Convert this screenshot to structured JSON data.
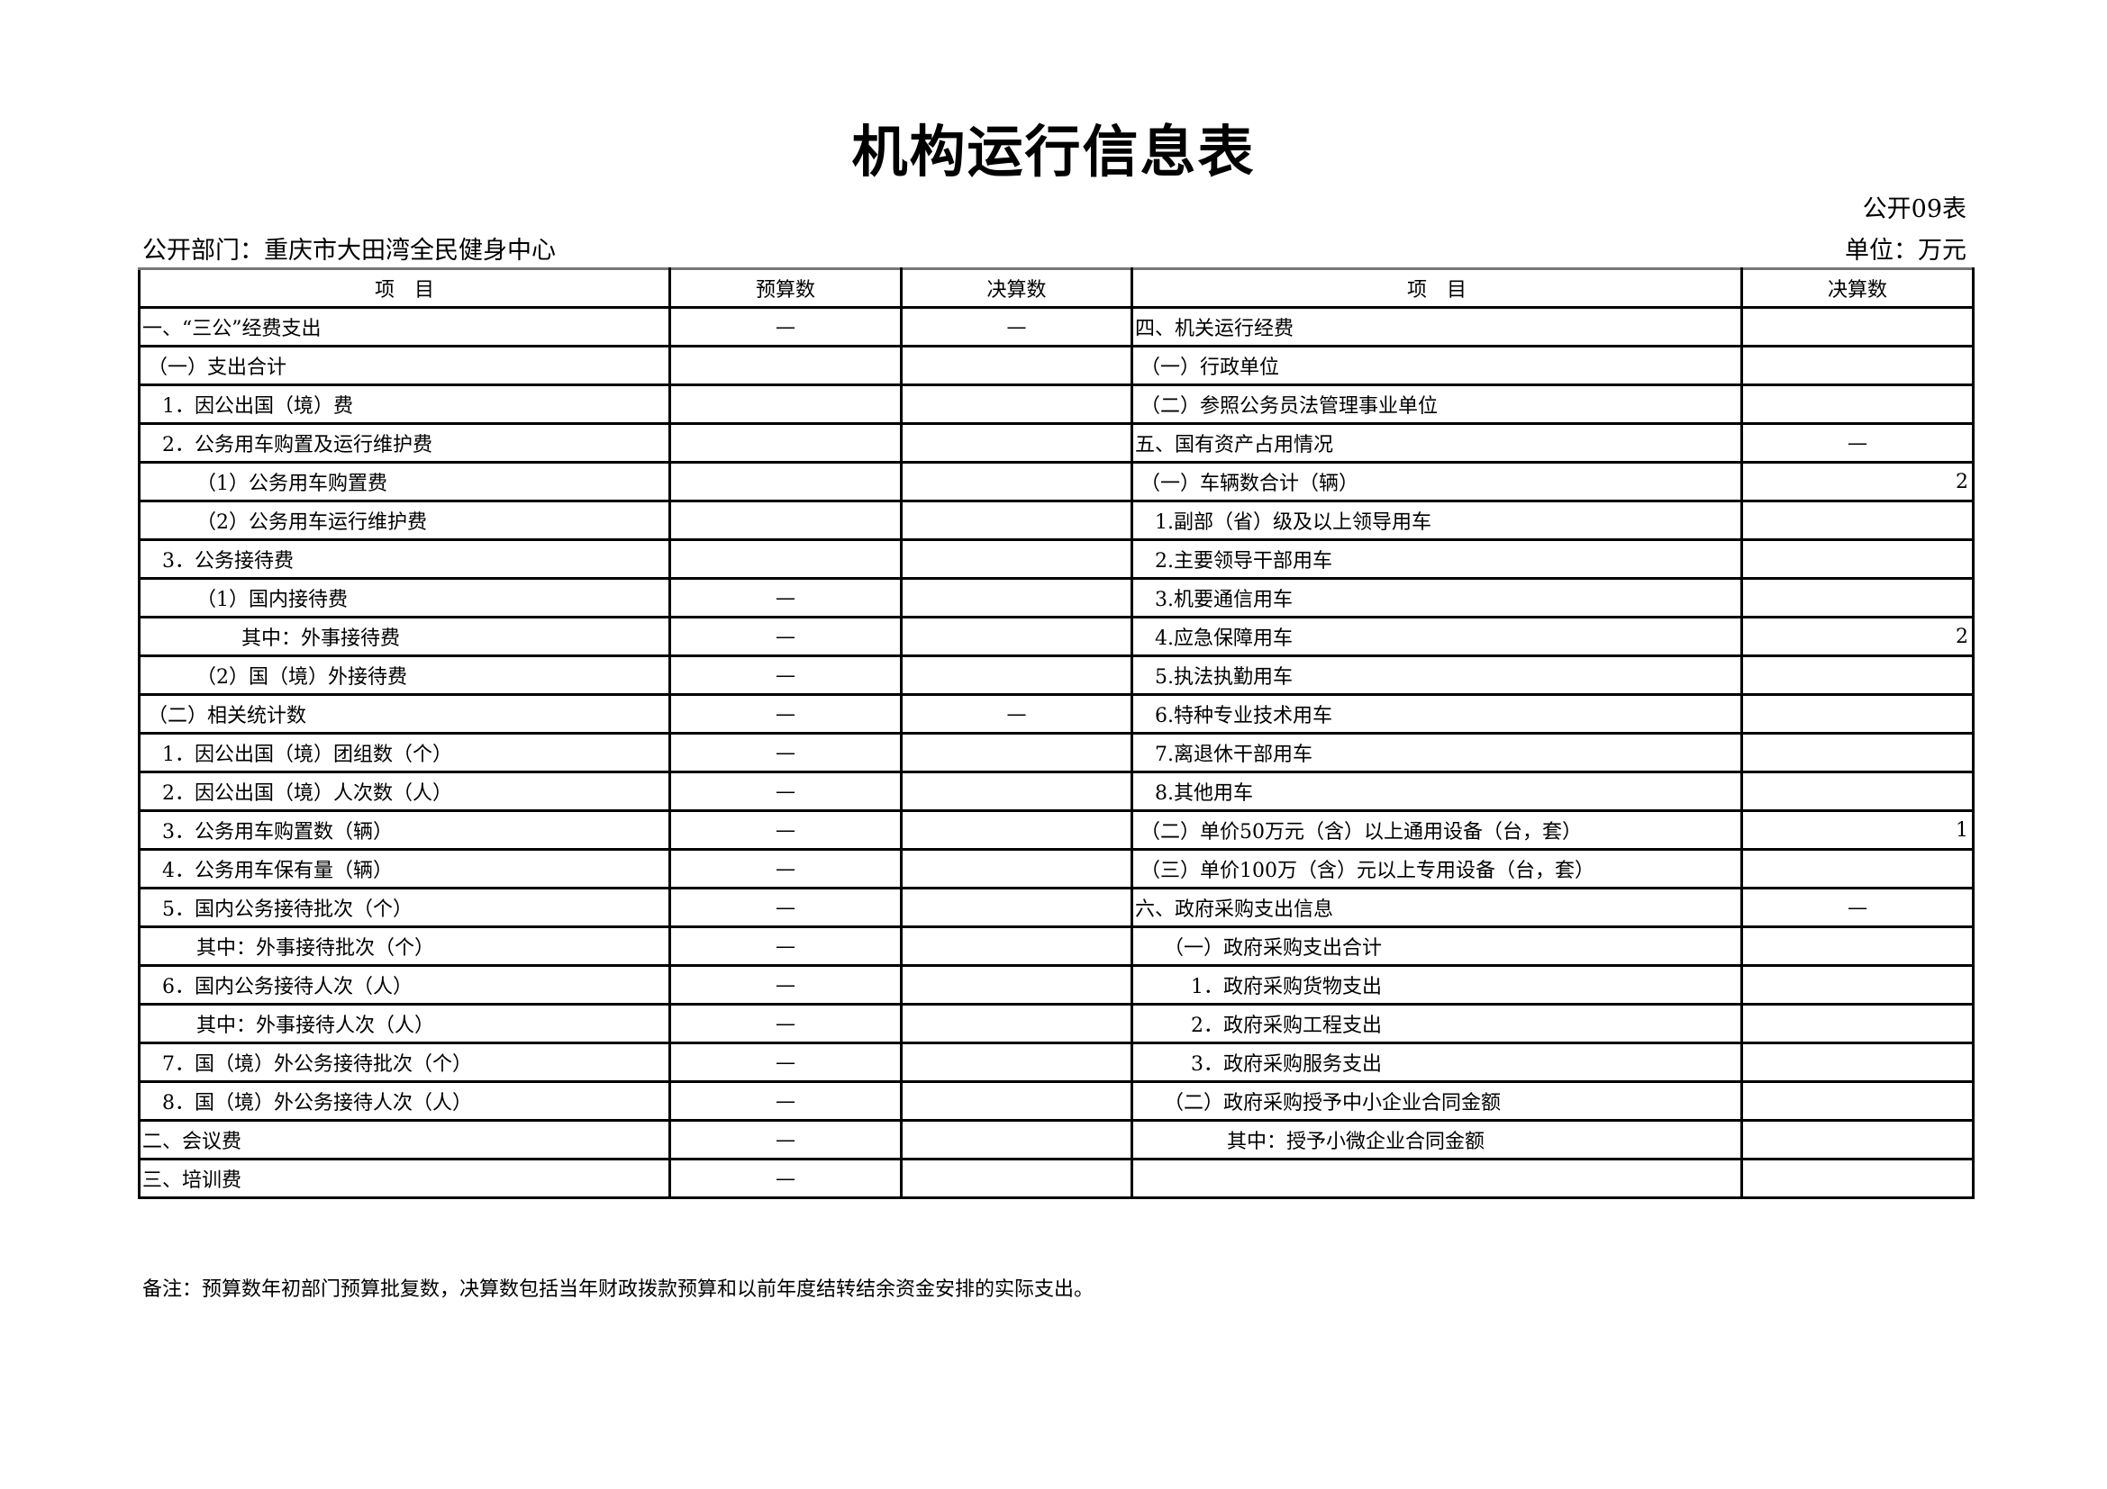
{
  "title": "机构运行信息表",
  "form_no": "公开09表",
  "department": "公开部门：重庆市大田湾全民健身中心",
  "unit": "单位：万元",
  "headers": {
    "left_item": "项　目",
    "left_budget": "预算数",
    "left_final": "决算数",
    "right_item": "项　目",
    "right_final": "决算数"
  },
  "rows": [
    {
      "l": "一、“三公”经费支出",
      "li": 0,
      "lb": "—",
      "lf": "—",
      "r": "四、机关运行经费",
      "ri": 0,
      "rv": ""
    },
    {
      "l": "（一）支出合计",
      "li": 1,
      "lb": "",
      "lf": "",
      "r": "（一）行政单位",
      "ri": 1,
      "rv": ""
    },
    {
      "l": "1．因公出国（境）费",
      "li": 2,
      "lb": "",
      "lf": "",
      "r": "（二）参照公务员法管理事业单位",
      "ri": 1,
      "rv": ""
    },
    {
      "l": "2．公务用车购置及运行维护费",
      "li": 2,
      "lb": "",
      "lf": "",
      "r": "五、国有资产占用情况",
      "ri": 0,
      "rv": "—"
    },
    {
      "l": "（1）公务用车购置费",
      "li": 3,
      "lb": "",
      "lf": "",
      "r": "（一）车辆数合计（辆）",
      "ri": 1,
      "rv": "2"
    },
    {
      "l": "（2）公务用车运行维护费",
      "li": 3,
      "lb": "",
      "lf": "",
      "r": "1.副部（省）级及以上领导用车",
      "ri": 2,
      "rv": ""
    },
    {
      "l": "3．公务接待费",
      "li": 2,
      "lb": "",
      "lf": "",
      "r": "2.主要领导干部用车",
      "ri": 2,
      "rv": ""
    },
    {
      "l": "（1）国内接待费",
      "li": 3,
      "lb": "—",
      "lf": "",
      "r": "3.机要通信用车",
      "ri": 2,
      "rv": ""
    },
    {
      "l": "其中：外事接待费",
      "li": 5,
      "lb": "—",
      "lf": "",
      "r": "4.应急保障用车",
      "ri": 2,
      "rv": "2"
    },
    {
      "l": "（2）国（境）外接待费",
      "li": 3,
      "lb": "—",
      "lf": "",
      "r": "5.执法执勤用车",
      "ri": 2,
      "rv": ""
    },
    {
      "l": "（二）相关统计数",
      "li": 1,
      "lb": "—",
      "lf": "—",
      "r": "6.特种专业技术用车",
      "ri": 2,
      "rv": ""
    },
    {
      "l": "1．因公出国（境）团组数（个）",
      "li": 2,
      "lb": "—",
      "lf": "",
      "r": "7.离退休干部用车",
      "ri": 2,
      "rv": ""
    },
    {
      "l": "2．因公出国（境）人次数（人）",
      "li": 2,
      "lb": "—",
      "lf": "",
      "r": "8.其他用车",
      "ri": 2,
      "rv": ""
    },
    {
      "l": "3．公务用车购置数（辆）",
      "li": 2,
      "lb": "—",
      "lf": "",
      "r": "（二）单价50万元（含）以上通用设备（台，套）",
      "ri": 1,
      "rv": "1"
    },
    {
      "l": "4．公务用车保有量（辆）",
      "li": 2,
      "lb": "—",
      "lf": "",
      "r": "（三）单价100万（含）元以上专用设备（台，套）",
      "ri": 1,
      "rv": ""
    },
    {
      "l": "5．国内公务接待批次（个）",
      "li": 2,
      "lb": "—",
      "lf": "",
      "r": "六、政府采购支出信息",
      "ri": 0,
      "rv": "—"
    },
    {
      "l": "其中：外事接待批次（个）",
      "li": 3,
      "lb": "—",
      "lf": "",
      "r": "（一）政府采购支出合计",
      "ri": 3,
      "rv": ""
    },
    {
      "l": "6．国内公务接待人次（人）",
      "li": 2,
      "lb": "—",
      "lf": "",
      "r": "1．政府采购货物支出",
      "ri": 4,
      "rv": ""
    },
    {
      "l": "其中：外事接待人次（人）",
      "li": 3,
      "lb": "—",
      "lf": "",
      "r": "2．政府采购工程支出",
      "ri": 4,
      "rv": ""
    },
    {
      "l": "7．国（境）外公务接待批次（个）",
      "li": 2,
      "lb": "—",
      "lf": "",
      "r": "3．政府采购服务支出",
      "ri": 4,
      "rv": ""
    },
    {
      "l": "8．国（境）外公务接待人次（人）",
      "li": 2,
      "lb": "—",
      "lf": "",
      "r": "（二）政府采购授予中小企业合同金额",
      "ri": 3,
      "rv": ""
    },
    {
      "l": "二、会议费",
      "li": 0,
      "lb": "—",
      "lf": "",
      "r": "其中：授予小微企业合同金额",
      "ri": 5,
      "rv": ""
    },
    {
      "l": "三、培训费",
      "li": 0,
      "lb": "—",
      "lf": "",
      "r": "",
      "ri": 0,
      "rv": ""
    }
  ],
  "note": "备注：预算数年初部门预算批复数，决算数包括当年财政拨款预算和以前年度结转结余资金安排的实际支出。"
}
